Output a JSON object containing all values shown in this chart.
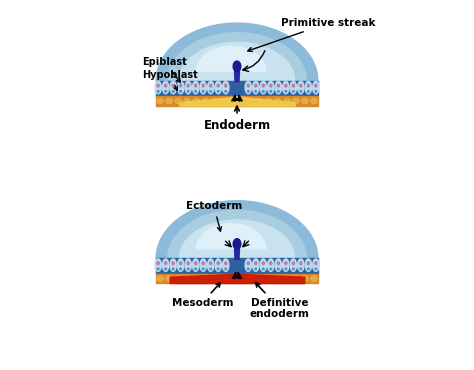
{
  "bg_color": "#ffffff",
  "top_diagram": {
    "labels": {
      "primitive_streak": "Primitive streak",
      "epiblast": "Epiblast",
      "hypoblast": "Hypoblast",
      "endoderm": "Endoderm"
    }
  },
  "bottom_diagram": {
    "labels": {
      "ectoderm": "Ectoderm",
      "mesoderm": "Mesoderm",
      "definitive_endoderm": "Definitive\nendoderm"
    }
  },
  "colors": {
    "dome_outer": "#8bbbd8",
    "dome_mid": "#a8cce0",
    "dome_inner": "#c8e2f0",
    "dome_highlight": "#dff0f8",
    "cell_body": "#b8ddf0",
    "cell_wall": "#7ab8d8",
    "cell_dot_pink": "#c878a0",
    "cell_dot_blue": "#6090c0",
    "orange_layer": "#d4882a",
    "orange_cell": "#e8a840",
    "yellow_fill": "#e8c020",
    "yellow_light": "#f0d060",
    "red_mesoderm": "#cc1800",
    "dark_blue_node": "#1a1a90",
    "dark_blue_col": "#2828a0",
    "blue_dark_bg": "#3060a0",
    "arrow_color": "#000000"
  }
}
